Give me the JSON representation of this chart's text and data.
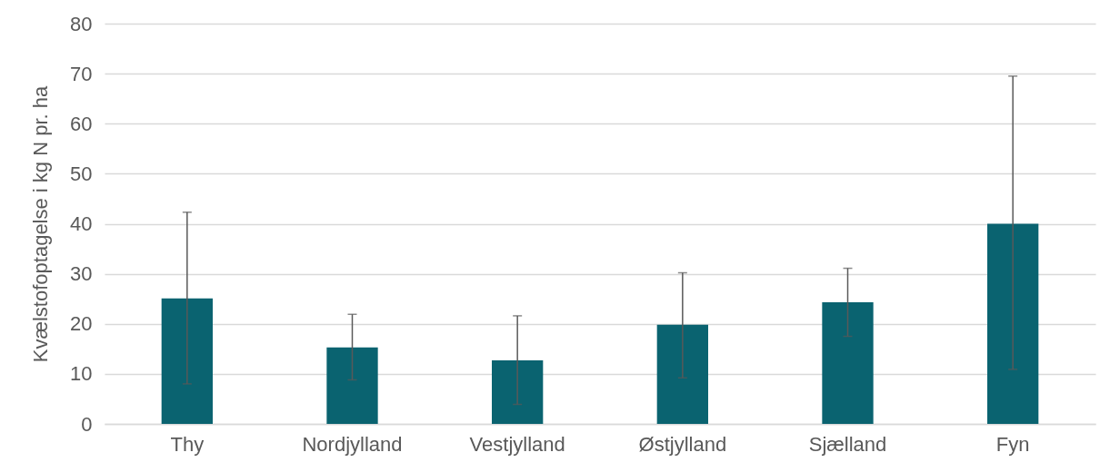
{
  "chart_data": {
    "type": "bar",
    "ylabel": "Kvælstofoptagelse i kg N pr. ha",
    "categories": [
      "Thy",
      "Nordjylland",
      "Vestjylland",
      "Østjylland",
      "Sjælland",
      "Fyn"
    ],
    "values": [
      25.1,
      15.3,
      12.7,
      19.8,
      24.3,
      40.0
    ],
    "errors": [
      [
        8.0,
        42.3
      ],
      [
        8.8,
        21.9
      ],
      [
        3.9,
        21.6
      ],
      [
        9.2,
        30.2
      ],
      [
        17.5,
        31.1
      ],
      [
        10.9,
        69.5
      ]
    ],
    "color": "#0a6370",
    "ylim": [
      0,
      80
    ],
    "yticks": [
      0,
      10,
      20,
      30,
      40,
      50,
      60,
      70,
      80
    ],
    "grid": "y"
  }
}
